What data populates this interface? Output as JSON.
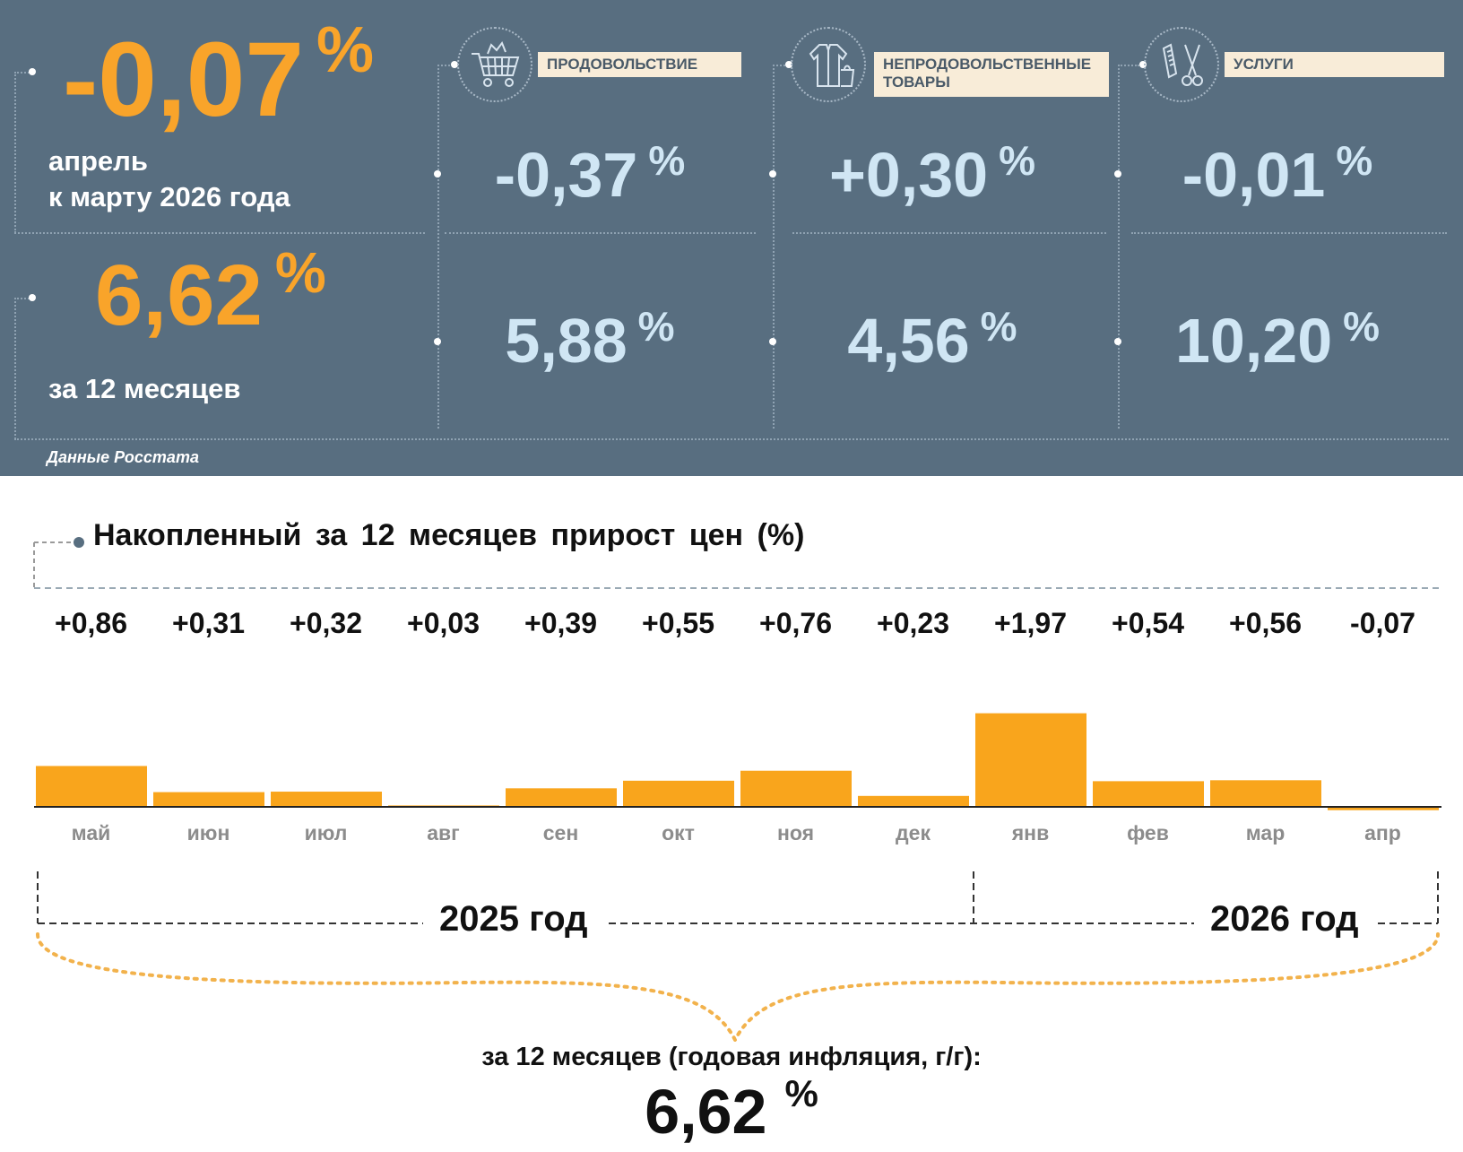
{
  "header": {
    "month_change": {
      "value": "-0,07",
      "unit": "%",
      "line1": "апрель",
      "line2": "к марту 2026 года"
    },
    "annual_change": {
      "value": "6,62",
      "unit": "%",
      "label": "за 12 месяцев"
    },
    "source": "Данные Росстата"
  },
  "categories": [
    {
      "label": "ПРОДОВОЛЬСТВИЕ",
      "icon": "shopping-cart-icon",
      "month": "-0,37",
      "annual": "5,88",
      "unit": "%"
    },
    {
      "label": "НЕПРОДОВОЛЬСТВЕННЫЕ ТОВАРЫ",
      "icon": "clothing-icon",
      "month": "+0,30",
      "annual": "4,56",
      "unit": "%"
    },
    {
      "label": "УСЛУГИ",
      "icon": "scissors-comb-icon",
      "month": "-0,01",
      "annual": "10,20",
      "unit": "%"
    }
  ],
  "chart_data": {
    "type": "bar",
    "title": "Накопленный за 12 месяцев прирост цен (%)",
    "categories": [
      "май",
      "июн",
      "июл",
      "авг",
      "сен",
      "окт",
      "ноя",
      "дек",
      "янв",
      "фев",
      "мар",
      "апр"
    ],
    "values": [
      0.86,
      0.31,
      0.32,
      0.03,
      0.39,
      0.55,
      0.76,
      0.23,
      1.97,
      0.54,
      0.56,
      -0.07
    ],
    "value_labels": [
      "+0,86",
      "+0,31",
      "+0,32",
      "+0,03",
      "+0,39",
      "+0,55",
      "+0,76",
      "+0,23",
      "+1,97",
      "+0,54",
      "+0,56",
      "-0,07"
    ],
    "bar_color": "#f9a51c",
    "groups": [
      {
        "label": "2025 год",
        "months": [
          "май",
          "июн",
          "июл",
          "авг",
          "сен",
          "окт",
          "ноя",
          "дек"
        ]
      },
      {
        "label": "2026 год",
        "months": [
          "янв",
          "фев",
          "мар",
          "апр"
        ]
      }
    ],
    "summary": {
      "caption": "за 12 месяцев (годовая инфляция, г/г):",
      "value": "6,62",
      "unit": "%"
    }
  }
}
